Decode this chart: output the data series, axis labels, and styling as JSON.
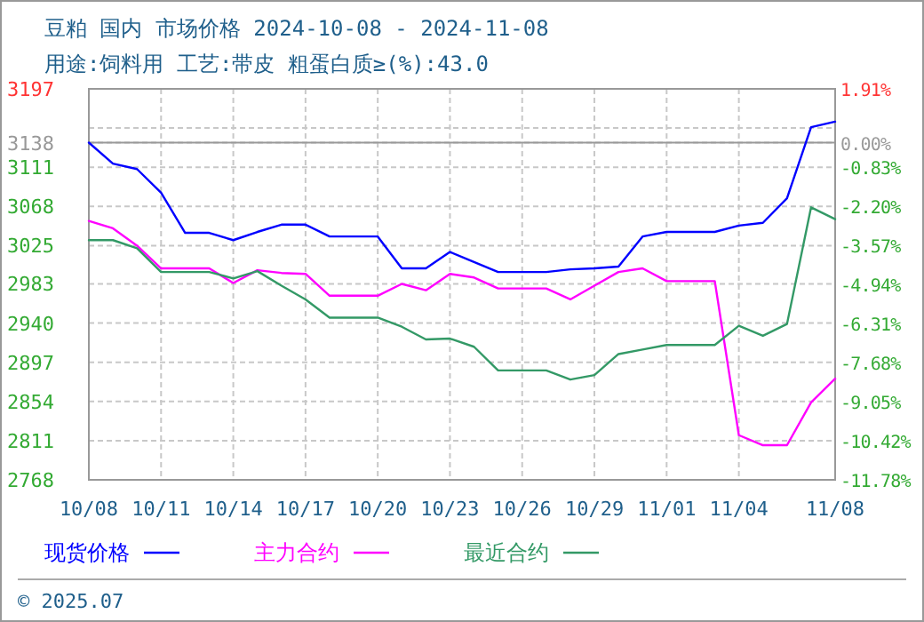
{
  "chart_data": {
    "type": "line",
    "title": "豆粕 国内 市场价格 2024-10-08 - 2024-11-08",
    "subtitle": "用途:饲料用 工艺:带皮 粗蛋白质≥(%):43.0",
    "x": [
      "2024-10-08",
      "2024-10-09",
      "2024-10-10",
      "2024-10-11",
      "2024-10-12",
      "2024-10-13",
      "2024-10-14",
      "2024-10-15",
      "2024-10-16",
      "2024-10-17",
      "2024-10-18",
      "2024-10-19",
      "2024-10-20",
      "2024-10-21",
      "2024-10-22",
      "2024-10-23",
      "2024-10-24",
      "2024-10-25",
      "2024-10-26",
      "2024-10-27",
      "2024-10-28",
      "2024-10-29",
      "2024-10-30",
      "2024-10-31",
      "2024-11-01",
      "2024-11-02",
      "2024-11-03",
      "2024-11-04",
      "2024-11-05",
      "2024-11-06",
      "2024-11-07",
      "2024-11-08"
    ],
    "series": [
      {
        "name": "现货价格",
        "color": "#0000ff",
        "values": [
          3138,
          3115,
          3109,
          3083,
          3039,
          3039,
          3031,
          3040,
          3048,
          3048,
          3035,
          3035,
          3035,
          3000,
          3000,
          3018,
          3007,
          2996,
          2996,
          2996,
          2999,
          3000,
          3002,
          3035,
          3040,
          3040,
          3040,
          3047,
          3050,
          3077,
          3155,
          3161
        ]
      },
      {
        "name": "主力合约",
        "color": "#ff00ff",
        "values": [
          3052,
          3044,
          3025,
          3000,
          3000,
          3000,
          2984,
          2998,
          2995,
          2994,
          2970,
          2970,
          2970,
          2983,
          2976,
          2994,
          2990,
          2978,
          2978,
          2978,
          2966,
          2981,
          2996,
          3000,
          2986,
          2986,
          2986,
          2817,
          2806,
          2806,
          2853,
          2879
        ]
      },
      {
        "name": "最近合约",
        "color": "#339966",
        "values": [
          3031,
          3031,
          3022,
          2996,
          2996,
          2996,
          2989,
          2997,
          2981,
          2966,
          2946,
          2946,
          2946,
          2936,
          2922,
          2923,
          2914,
          2888,
          2888,
          2888,
          2878,
          2883,
          2906,
          2911,
          2916,
          2916,
          2916,
          2937,
          2926,
          2939,
          3067,
          3054
        ]
      }
    ],
    "xlim": [
      "2024-10-08",
      "2024-11-08"
    ],
    "xticks": [
      {
        "value": "2024-10-08",
        "label": "10/08"
      },
      {
        "value": "2024-10-11",
        "label": "10/11"
      },
      {
        "value": "2024-10-14",
        "label": "10/14"
      },
      {
        "value": "2024-10-17",
        "label": "10/17"
      },
      {
        "value": "2024-10-20",
        "label": "10/20"
      },
      {
        "value": "2024-10-23",
        "label": "10/23"
      },
      {
        "value": "2024-10-26",
        "label": "10/26"
      },
      {
        "value": "2024-10-29",
        "label": "10/29"
      },
      {
        "value": "2024-11-01",
        "label": "11/01"
      },
      {
        "value": "2024-11-04",
        "label": "11/04"
      },
      {
        "value": "2024-11-08",
        "label": "11/08"
      }
    ],
    "ylim": [
      2768,
      3197
    ],
    "yticks": [
      3197,
      {
        "value": 3154,
        "label": null
      },
      3138,
      3111,
      3068,
      3025,
      2983,
      2940,
      2897,
      2854,
      2811,
      2768
    ],
    "y2lim": [
      -11.78,
      1.91
    ],
    "y2ticks": [
      {
        "value": 1.91,
        "label": "1.91%"
      },
      {
        "value": 0,
        "label": "0.00%"
      },
      {
        "value": -0.83,
        "label": "-0.83%"
      },
      {
        "value": -2.2,
        "label": "-2.20%"
      },
      {
        "value": -3.57,
        "label": "-3.57%"
      },
      {
        "value": -4.94,
        "label": "-4.94%"
      },
      {
        "value": -6.31,
        "label": "-6.31%"
      },
      {
        "value": -7.68,
        "label": "-7.68%"
      },
      {
        "value": -9.05,
        "label": "-9.05%"
      },
      {
        "value": -10.42,
        "label": "-10.42%"
      },
      {
        "value": -11.78,
        "label": "-11.78%"
      }
    ],
    "ref_lines": [
      {
        "axis": "y",
        "value": 3138,
        "color": "#999999"
      }
    ],
    "grid": true,
    "legend": "bottom",
    "marker": "none",
    "line_style": "solid",
    "annotations": [
      "© 2025.07"
    ]
  }
}
